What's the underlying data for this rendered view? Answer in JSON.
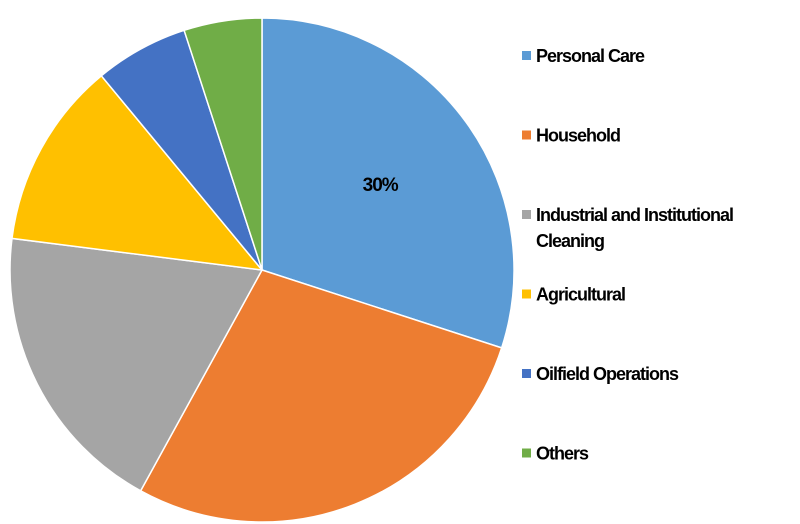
{
  "chart_data": {
    "type": "pie",
    "title": "",
    "categories": [
      "Personal Care",
      "Household",
      "Industrial and Institutional Cleaning",
      "Agricultural",
      "Oilfield Operations",
      "Others"
    ],
    "values": [
      30,
      28,
      19,
      12,
      6,
      5
    ],
    "data_labels": [
      "30%",
      "",
      "",
      "",
      "",
      ""
    ],
    "colors": [
      "#5b9bd5",
      "#ed7d31",
      "#a5a5a5",
      "#ffc000",
      "#4472c4",
      "#70ad47"
    ],
    "legend_lines": [
      [
        "Personal Care"
      ],
      [
        "Household"
      ],
      [
        "Industrial and Institutional",
        "Cleaning"
      ],
      [
        "Agricultural"
      ],
      [
        "Oilfield Operations"
      ],
      [
        "Others"
      ]
    ],
    "legend_placement": "right",
    "start_angle": "12 o'clock",
    "direction": "clockwise"
  }
}
